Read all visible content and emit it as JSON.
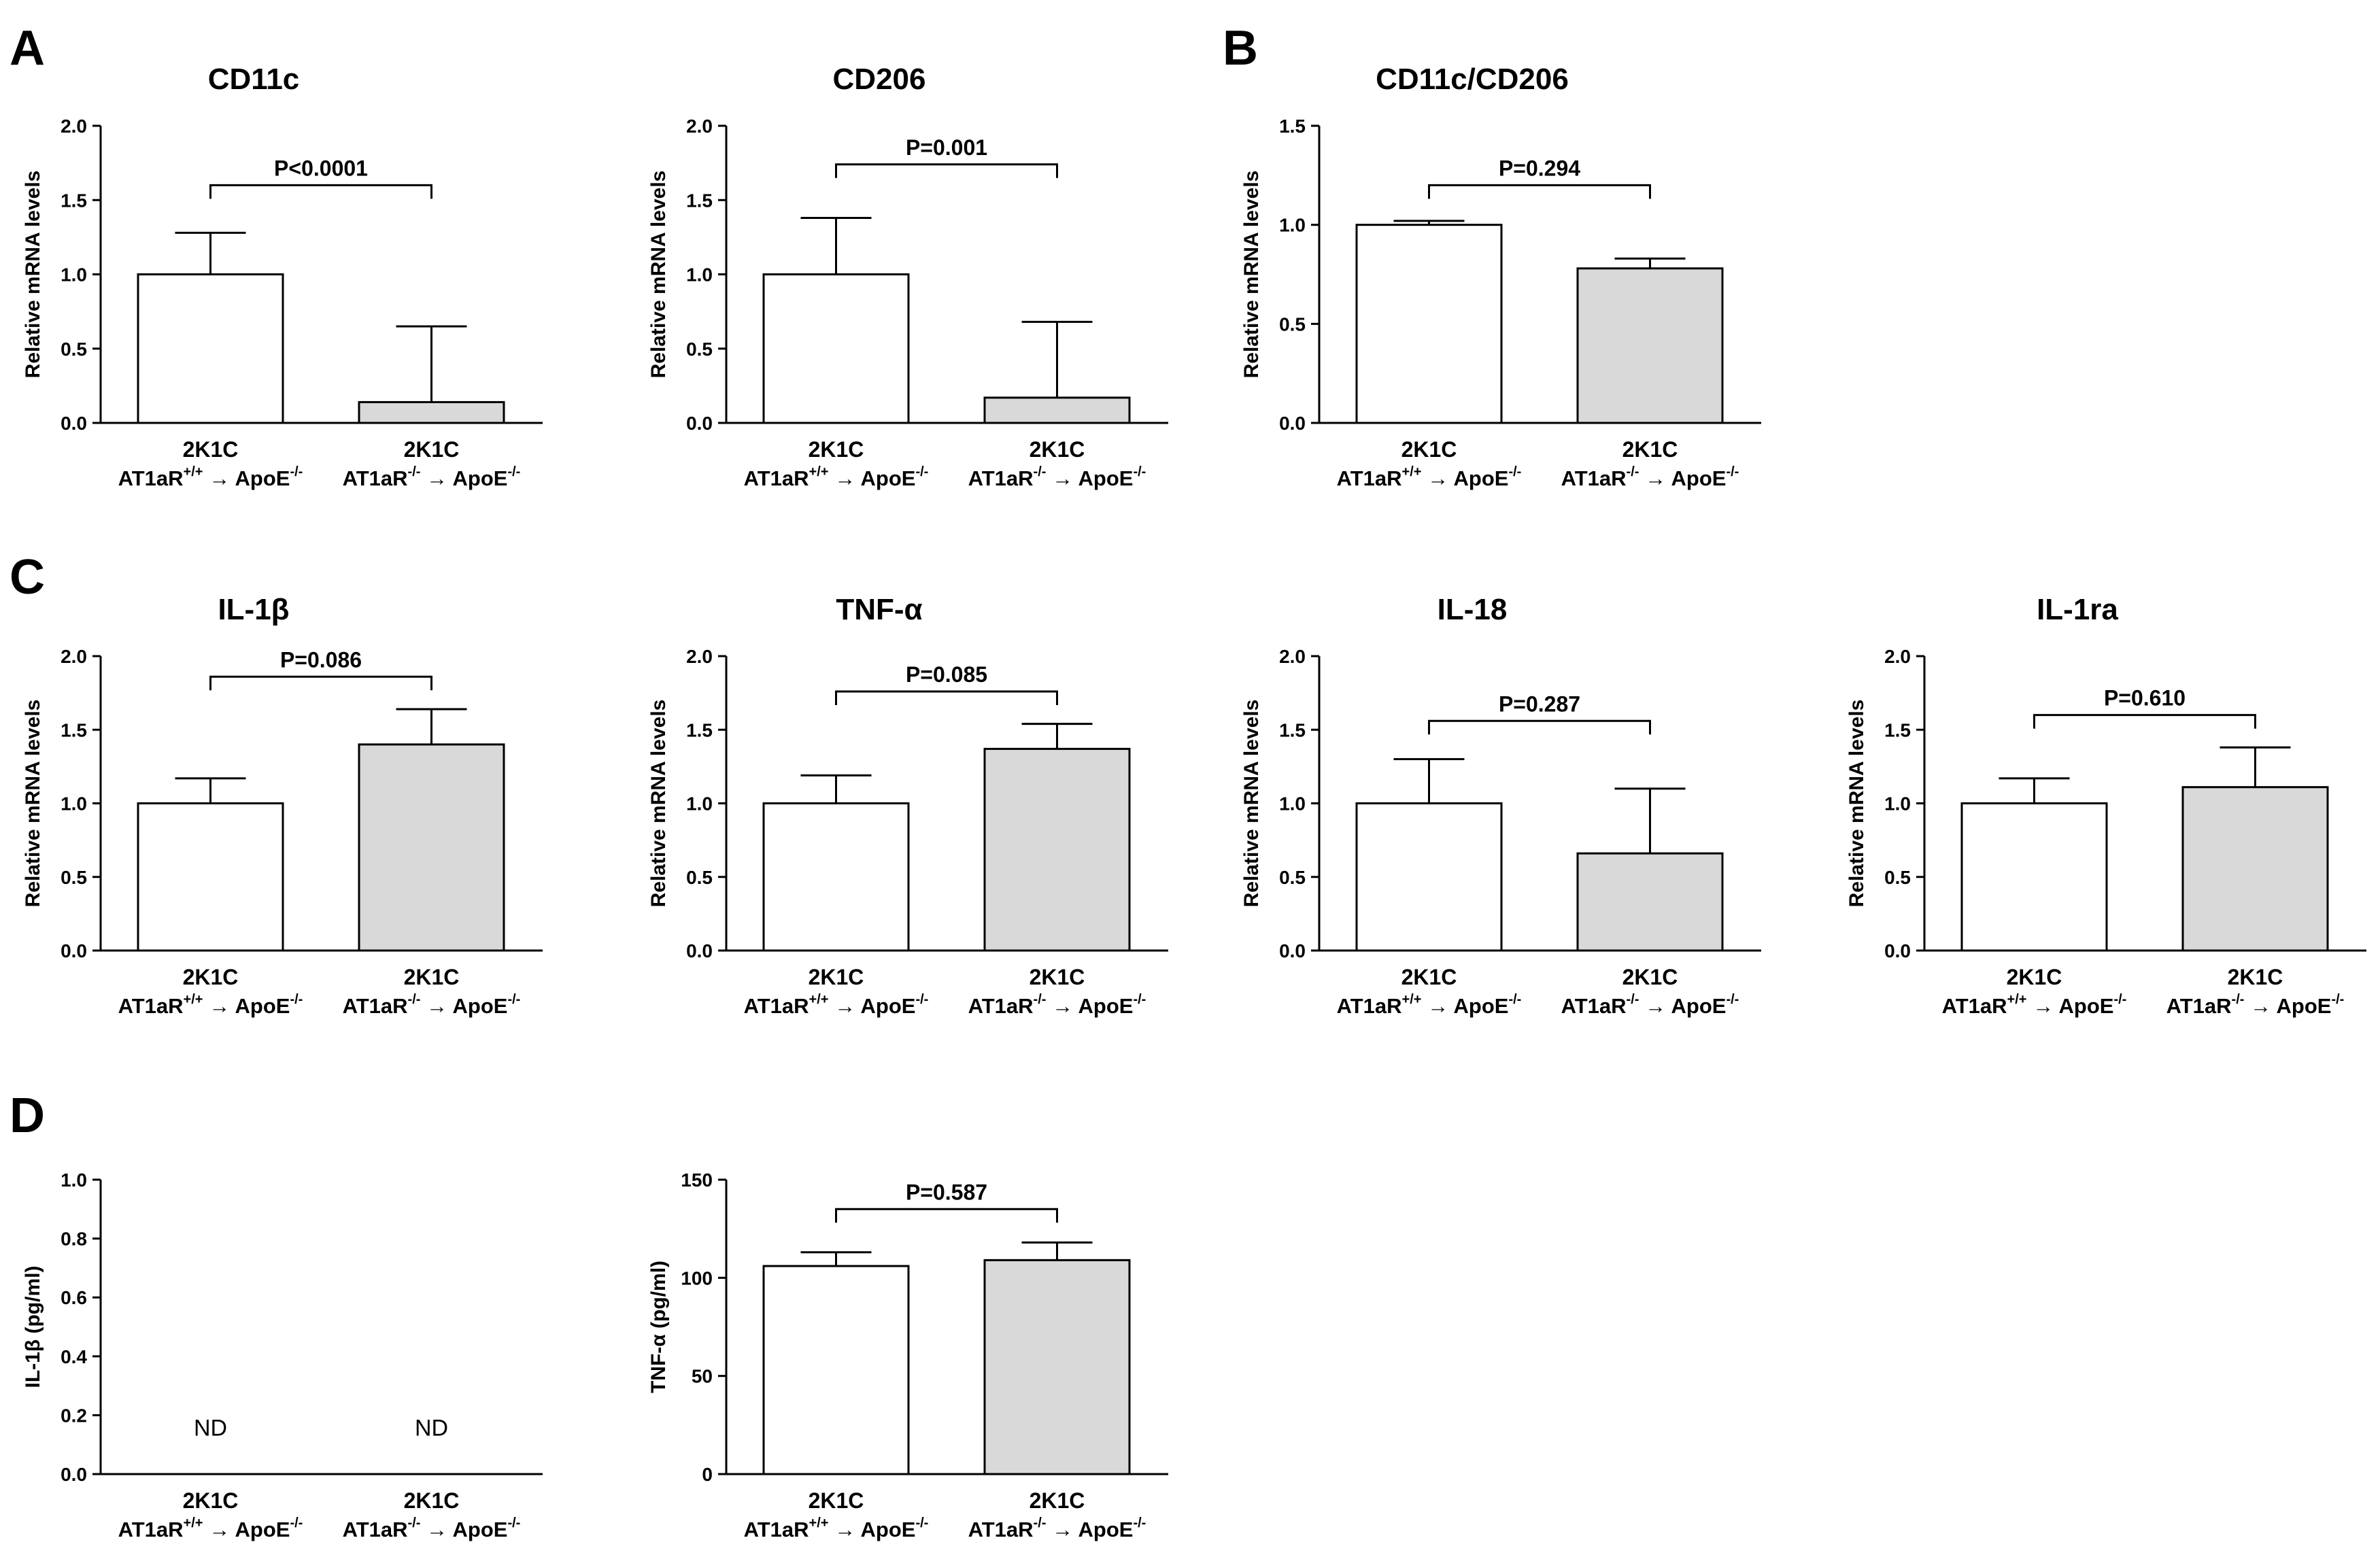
{
  "panel_letters": [
    "A",
    "B",
    "C",
    "D"
  ],
  "x_category_top": "2K1C",
  "x_group_prefix": "AT1aR",
  "x_group_suffix": "ApoE",
  "x_group_wt_superscript": "+/+",
  "x_group_ko_superscript": "-/-",
  "arrow_glyph": "→",
  "colors": {
    "bar1_fill": "#ffffff",
    "bar2_fill": "#d9d9d9",
    "stroke": "#000000"
  },
  "chart_data": [
    {
      "id": "cd11c",
      "panel": "A",
      "type": "bar",
      "title": "CD11c",
      "ylabel": "Relative mRNA levels",
      "categories": [
        "2K1C AT1aR+/+ → ApoE-/-",
        "2K1C AT1aR-/- → ApoE-/-"
      ],
      "values": [
        1.0,
        0.14
      ],
      "errors": [
        0.28,
        0.51
      ],
      "ylim": [
        0,
        2.0
      ],
      "yticks": [
        "0.0",
        "0.5",
        "1.0",
        "1.5",
        "2.0"
      ],
      "pvalue": "P<0.0001",
      "pvalue_level": 1.6
    },
    {
      "id": "cd206",
      "panel": "A",
      "type": "bar",
      "title": "CD206",
      "ylabel": "Relative mRNA levels",
      "categories": [
        "2K1C AT1aR+/+ → ApoE-/-",
        "2K1C AT1aR-/- → ApoE-/-"
      ],
      "values": [
        1.0,
        0.17
      ],
      "errors": [
        0.38,
        0.51
      ],
      "ylim": [
        0,
        2.0
      ],
      "yticks": [
        "0.0",
        "0.5",
        "1.0",
        "1.5",
        "2.0"
      ],
      "pvalue": "P=0.001",
      "pvalue_level": 1.74
    },
    {
      "id": "cd11c-cd206",
      "panel": "B",
      "type": "bar",
      "title": "CD11c/CD206",
      "ylabel": "Relative mRNA levels",
      "categories": [
        "2K1C AT1aR+/+ → ApoE-/-",
        "2K1C AT1aR-/- → ApoE-/-"
      ],
      "values": [
        1.0,
        0.78
      ],
      "errors": [
        0.02,
        0.05
      ],
      "ylim": [
        0,
        1.5
      ],
      "yticks": [
        "0.0",
        "0.5",
        "1.0",
        "1.5"
      ],
      "pvalue": "P=0.294",
      "pvalue_level": 1.2
    },
    {
      "id": "il1b",
      "panel": "C",
      "type": "bar",
      "title": "IL-1β",
      "ylabel": "Relative mRNA levels",
      "categories": [
        "2K1C AT1aR+/+ → ApoE-/-",
        "2K1C AT1aR-/- → ApoE-/-"
      ],
      "values": [
        1.0,
        1.4
      ],
      "errors": [
        0.17,
        0.24
      ],
      "ylim": [
        0,
        2.0
      ],
      "yticks": [
        "0.0",
        "0.5",
        "1.0",
        "1.5",
        "2.0"
      ],
      "pvalue": "P=0.086",
      "pvalue_level": 1.86
    },
    {
      "id": "tnfa",
      "panel": "C",
      "type": "bar",
      "title": "TNF-α",
      "ylabel": "Relative mRNA levels",
      "categories": [
        "2K1C AT1aR+/+ → ApoE-/-",
        "2K1C AT1aR-/- → ApoE-/-"
      ],
      "values": [
        1.0,
        1.37
      ],
      "errors": [
        0.19,
        0.17
      ],
      "ylim": [
        0,
        2.0
      ],
      "yticks": [
        "0.0",
        "0.5",
        "1.0",
        "1.5",
        "2.0"
      ],
      "pvalue": "P=0.085",
      "pvalue_level": 1.76
    },
    {
      "id": "il18",
      "panel": "C",
      "type": "bar",
      "title": "IL-18",
      "ylabel": "Relative mRNA levels",
      "categories": [
        "2K1C AT1aR+/+ → ApoE-/-",
        "2K1C AT1aR-/- → ApoE-/-"
      ],
      "values": [
        1.0,
        0.66
      ],
      "errors": [
        0.3,
        0.44
      ],
      "ylim": [
        0,
        2.0
      ],
      "yticks": [
        "0.0",
        "0.5",
        "1.0",
        "1.5",
        "2.0"
      ],
      "pvalue": "P=0.287",
      "pvalue_level": 1.56
    },
    {
      "id": "il1ra",
      "panel": "C",
      "type": "bar",
      "title": "IL-1ra",
      "ylabel": "Relative mRNA levels",
      "categories": [
        "2K1C AT1aR+/+ → ApoE-/-",
        "2K1C AT1aR-/- → ApoE-/-"
      ],
      "values": [
        1.0,
        1.11
      ],
      "errors": [
        0.17,
        0.27
      ],
      "ylim": [
        0,
        2.0
      ],
      "yticks": [
        "0.0",
        "0.5",
        "1.0",
        "1.5",
        "2.0"
      ],
      "pvalue": "P=0.610",
      "pvalue_level": 1.6
    },
    {
      "id": "il1b-protein",
      "panel": "D",
      "type": "bar",
      "title": "",
      "ylabel": "IL-1β (pg/ml)",
      "categories": [
        "2K1C AT1aR+/+ → ApoE-/-",
        "2K1C AT1aR-/- → ApoE-/-"
      ],
      "values": [
        null,
        null
      ],
      "errors": [
        null,
        null
      ],
      "labels": [
        "ND",
        "ND"
      ],
      "ylim": [
        0,
        1.0
      ],
      "yticks": [
        "0.0",
        "0.2",
        "0.4",
        "0.6",
        "0.8",
        "1.0"
      ],
      "pvalue": "",
      "pvalue_level": null
    },
    {
      "id": "tnfa-protein",
      "panel": "D",
      "type": "bar",
      "title": "",
      "ylabel": "TNF-α (pg/ml)",
      "categories": [
        "2K1C AT1aR+/+ → ApoE-/-",
        "2K1C AT1aR-/- → ApoE-/-"
      ],
      "values": [
        106,
        109
      ],
      "errors": [
        7,
        9
      ],
      "ylim": [
        0,
        150
      ],
      "yticks": [
        "0",
        "50",
        "100",
        "150"
      ],
      "pvalue": "P=0.587",
      "pvalue_level": 135
    }
  ]
}
